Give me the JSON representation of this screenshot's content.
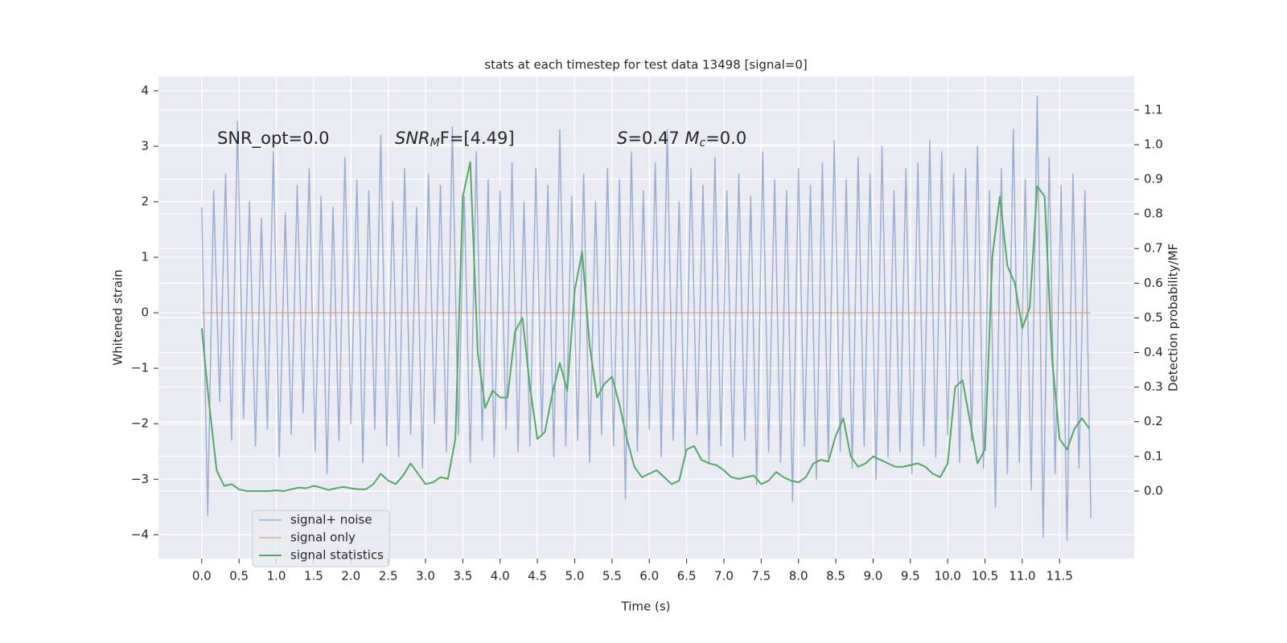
{
  "chart_data": {
    "type": "line",
    "title": "stats at each timestep for test data 13498 [signal=0]",
    "xlabel": "Time (s)",
    "ylabel": "Whitened strain",
    "y2label": "Detection probability/MF",
    "annotations": [
      [
        {
          "text": "SNR_opt=0.0",
          "style": "normal"
        }
      ],
      [
        {
          "text": "SNR",
          "style": "italic"
        },
        {
          "text": "M",
          "style": "sub"
        },
        {
          "text": "F=[4.49]",
          "style": "normal"
        }
      ],
      [
        {
          "text": "S",
          "style": "italic"
        },
        {
          "text": "=0.47   ",
          "style": "normal"
        },
        {
          "text": "M",
          "style": "italic"
        },
        {
          "text": "c",
          "style": "sub"
        },
        {
          "text": "=0.0",
          "style": "normal"
        }
      ]
    ],
    "xlim": [
      -0.58,
      12.5
    ],
    "ylim": [
      -4.43,
      4.26
    ],
    "y2lim": [
      -0.195,
      1.197
    ],
    "xticks": [
      {
        "value": 0,
        "label": "0.0"
      },
      {
        "value": 0.5,
        "label": "0.5"
      },
      {
        "value": 1,
        "label": "1.0"
      },
      {
        "value": 1.5,
        "label": "1.5"
      },
      {
        "value": 2,
        "label": "2.0"
      },
      {
        "value": 2.5,
        "label": "2.5"
      },
      {
        "value": 3,
        "label": "3.0"
      },
      {
        "value": 3.5,
        "label": "3.5"
      },
      {
        "value": 4,
        "label": "4.0"
      },
      {
        "value": 4.5,
        "label": "4.5"
      },
      {
        "value": 5,
        "label": "5.0"
      },
      {
        "value": 5.5,
        "label": "5.5"
      },
      {
        "value": 6,
        "label": "6.0"
      },
      {
        "value": 6.5,
        "label": "6.5"
      },
      {
        "value": 7,
        "label": "7.0"
      },
      {
        "value": 7.5,
        "label": "7.5"
      },
      {
        "value": 8,
        "label": "8.0"
      },
      {
        "value": 8.5,
        "label": "8.5"
      },
      {
        "value": 9,
        "label": "9.0"
      },
      {
        "value": 9.5,
        "label": "9.5"
      },
      {
        "value": 10,
        "label": "10.0"
      },
      {
        "value": 10.5,
        "label": "10.5"
      },
      {
        "value": 11,
        "label": "11.0"
      },
      {
        "value": 11.5,
        "label": "11.5"
      }
    ],
    "yticks": [
      {
        "value": -4,
        "label": "−4"
      },
      {
        "value": -3,
        "label": "−3"
      },
      {
        "value": -2,
        "label": "−2"
      },
      {
        "value": -1,
        "label": "−1"
      },
      0,
      1,
      2,
      3,
      4
    ],
    "y2ticks": [
      {
        "value": 0,
        "label": "0.0"
      },
      0.1,
      0.2,
      0.3,
      0.4,
      0.5,
      0.6,
      0.7,
      0.8,
      0.9,
      {
        "value": 1,
        "label": "1.0"
      },
      1.1
    ],
    "grid": true,
    "legend": "lower left",
    "series": [
      {
        "name": "signal+ noise",
        "color": "#4c72b0",
        "axis": "y",
        "x": [
          0,
          0.08,
          0.16,
          0.24,
          0.32,
          0.4,
          0.48,
          0.56,
          0.64,
          0.72,
          0.8,
          0.88,
          0.96,
          1.04,
          1.12,
          1.2,
          1.28,
          1.36,
          1.44,
          1.52,
          1.6,
          1.68,
          1.76,
          1.84,
          1.92,
          2,
          2.08,
          2.16,
          2.24,
          2.32,
          2.4,
          2.48,
          2.56,
          2.64,
          2.72,
          2.8,
          2.88,
          2.96,
          3.04,
          3.12,
          3.2,
          3.28,
          3.36,
          3.44,
          3.52,
          3.6,
          3.68,
          3.76,
          3.84,
          3.92,
          4,
          4.08,
          4.16,
          4.24,
          4.32,
          4.4,
          4.48,
          4.56,
          4.64,
          4.72,
          4.8,
          4.88,
          4.96,
          5.04,
          5.12,
          5.2,
          5.28,
          5.36,
          5.44,
          5.52,
          5.6,
          5.68,
          5.76,
          5.84,
          5.92,
          6,
          6.08,
          6.16,
          6.24,
          6.32,
          6.4,
          6.48,
          6.56,
          6.64,
          6.72,
          6.8,
          6.88,
          6.96,
          7.04,
          7.12,
          7.2,
          7.28,
          7.36,
          7.44,
          7.52,
          7.6,
          7.68,
          7.76,
          7.84,
          7.92,
          8,
          8.08,
          8.16,
          8.24,
          8.32,
          8.4,
          8.48,
          8.56,
          8.64,
          8.72,
          8.8,
          8.88,
          8.96,
          9.04,
          9.12,
          9.2,
          9.28,
          9.36,
          9.44,
          9.52,
          9.6,
          9.68,
          9.76,
          9.84,
          9.92,
          10,
          10.08,
          10.16,
          10.24,
          10.32,
          10.4,
          10.48,
          10.56,
          10.64,
          10.72,
          10.8,
          10.88,
          10.96,
          11.04,
          11.12,
          11.2,
          11.28,
          11.36,
          11.44,
          11.52,
          11.6,
          11.68,
          11.76,
          11.84,
          11.92
        ],
        "values": [
          1.9,
          -3.65,
          2.2,
          -1.6,
          2.5,
          -2.3,
          3.45,
          -1.9,
          2.0,
          -2.4,
          1.7,
          -2.1,
          2.9,
          -2.6,
          1.8,
          -2.2,
          2.3,
          -1.8,
          2.6,
          -2.5,
          2.1,
          -2.9,
          1.9,
          -2.3,
          2.8,
          -2.0,
          2.4,
          -2.7,
          2.2,
          -2.1,
          3.2,
          -2.4,
          2.0,
          -2.6,
          2.6,
          -2.2,
          1.9,
          -2.8,
          2.5,
          -2.0,
          2.3,
          -2.5,
          3.35,
          -2.2,
          2.1,
          -2.7,
          2.9,
          -2.3,
          2.4,
          -2.6,
          2.2,
          -2.1,
          2.7,
          -2.5,
          2.0,
          -2.4,
          2.6,
          -2.2,
          2.3,
          -2.6,
          3.3,
          -2.4,
          2.1,
          -2.3,
          2.5,
          -2.7,
          2.0,
          -2.2,
          2.6,
          -2.4,
          2.4,
          -3.35,
          2.9,
          -2.5,
          2.2,
          -2.1,
          2.7,
          -2.6,
          3.3,
          -2.3,
          2.0,
          -2.5,
          2.6,
          -2.2,
          2.3,
          -2.7,
          2.8,
          -2.4,
          2.2,
          -2.6,
          2.5,
          -2.3,
          2.1,
          -3.1,
          2.9,
          -2.5,
          2.4,
          -2.7,
          2.2,
          -3.4,
          2.6,
          -2.4,
          2.3,
          -3.0,
          2.7,
          -2.6,
          3.1,
          -2.5,
          2.4,
          -2.8,
          2.8,
          -2.4,
          2.5,
          -3.0,
          3.0,
          -2.6,
          2.2,
          -2.5,
          2.6,
          -2.9,
          2.7,
          -2.4,
          3.1,
          -2.6,
          2.9,
          -2.2,
          2.5,
          -2.7,
          2.6,
          -2.3,
          3.0,
          -2.8,
          2.2,
          -3.5,
          2.6,
          -2.9,
          3.3,
          -2.7,
          2.4,
          -3.2,
          3.9,
          -4.05,
          2.8,
          -2.9,
          2.3,
          -4.1,
          2.5,
          -2.8,
          2.2,
          -3.7
        ]
      },
      {
        "name": "signal only",
        "color": "#dd8452",
        "axis": "y",
        "x": [
          0,
          11.92
        ],
        "values": [
          0,
          0
        ]
      },
      {
        "name": "signal statistics",
        "color": "#55a868",
        "axis": "y2",
        "x": [
          0,
          0.1,
          0.2,
          0.3,
          0.4,
          0.5,
          0.6,
          0.7,
          0.8,
          0.9,
          1,
          1.1,
          1.2,
          1.3,
          1.4,
          1.5,
          1.6,
          1.7,
          1.8,
          1.9,
          2,
          2.1,
          2.2,
          2.3,
          2.4,
          2.5,
          2.6,
          2.7,
          2.8,
          2.9,
          3,
          3.1,
          3.2,
          3.3,
          3.4,
          3.5,
          3.6,
          3.7,
          3.8,
          3.9,
          4,
          4.1,
          4.2,
          4.3,
          4.4,
          4.5,
          4.6,
          4.7,
          4.8,
          4.9,
          5,
          5.1,
          5.2,
          5.3,
          5.4,
          5.5,
          5.6,
          5.7,
          5.8,
          5.9,
          6,
          6.1,
          6.2,
          6.3,
          6.4,
          6.5,
          6.6,
          6.7,
          6.8,
          6.9,
          7,
          7.1,
          7.2,
          7.3,
          7.4,
          7.5,
          7.6,
          7.7,
          7.8,
          7.9,
          8,
          8.1,
          8.2,
          8.3,
          8.4,
          8.5,
          8.6,
          8.7,
          8.8,
          8.9,
          9,
          9.1,
          9.2,
          9.3,
          9.4,
          9.5,
          9.6,
          9.7,
          9.8,
          9.9,
          10,
          10.1,
          10.2,
          10.3,
          10.4,
          10.5,
          10.6,
          10.7,
          10.8,
          10.9,
          11,
          11.1,
          11.2,
          11.3,
          11.4,
          11.5,
          11.6,
          11.7,
          11.8,
          11.9
        ],
        "values": [
          0.47,
          0.25,
          0.06,
          0.015,
          0.02,
          0.005,
          0,
          0,
          0,
          0,
          0.002,
          0,
          0.005,
          0.01,
          0.008,
          0.015,
          0.01,
          0.003,
          0.008,
          0.012,
          0.008,
          0.005,
          0.005,
          0.02,
          0.05,
          0.03,
          0.02,
          0.045,
          0.08,
          0.05,
          0.02,
          0.025,
          0.04,
          0.035,
          0.15,
          0.85,
          0.95,
          0.4,
          0.24,
          0.29,
          0.27,
          0.27,
          0.46,
          0.5,
          0.3,
          0.15,
          0.17,
          0.28,
          0.37,
          0.29,
          0.58,
          0.69,
          0.42,
          0.27,
          0.31,
          0.33,
          0.25,
          0.15,
          0.07,
          0.04,
          0.05,
          0.06,
          0.04,
          0.02,
          0.03,
          0.12,
          0.13,
          0.09,
          0.08,
          0.075,
          0.06,
          0.04,
          0.035,
          0.04,
          0.045,
          0.02,
          0.03,
          0.055,
          0.04,
          0.03,
          0.025,
          0.04,
          0.08,
          0.09,
          0.085,
          0.16,
          0.21,
          0.1,
          0.07,
          0.08,
          0.1,
          0.09,
          0.08,
          0.07,
          0.07,
          0.075,
          0.08,
          0.07,
          0.05,
          0.04,
          0.08,
          0.3,
          0.32,
          0.2,
          0.08,
          0.12,
          0.68,
          0.85,
          0.65,
          0.6,
          0.47,
          0.53,
          0.88,
          0.85,
          0.38,
          0.15,
          0.12,
          0.18,
          0.21,
          0.18
        ]
      }
    ]
  }
}
